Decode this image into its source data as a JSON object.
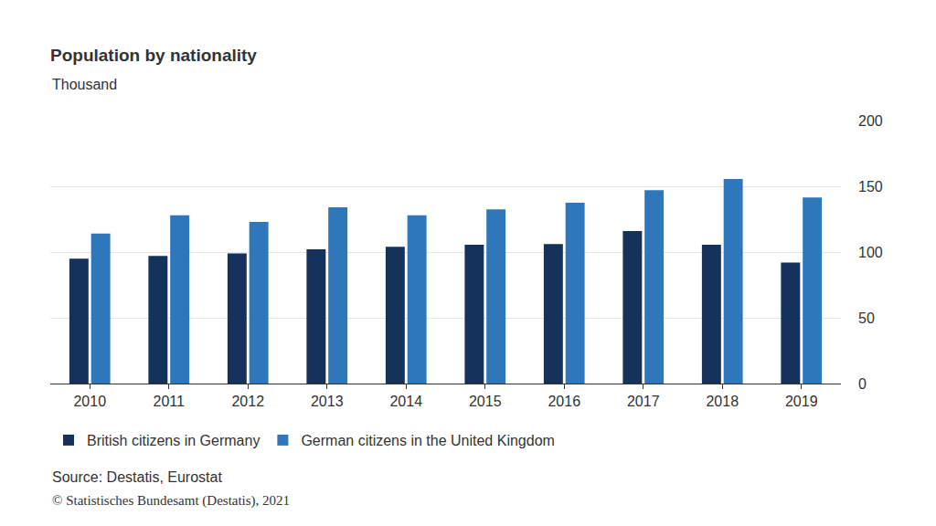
{
  "chart_data": {
    "type": "bar",
    "title": "Population by nationality",
    "subtitle": "Thousand",
    "categories": [
      "2010",
      "2011",
      "2012",
      "2013",
      "2014",
      "2015",
      "2016",
      "2017",
      "2018",
      "2019"
    ],
    "series": [
      {
        "name": "British citizens in Germany",
        "color": "#15325b",
        "values": [
          95,
          97,
          99,
          102,
          104,
          105.5,
          106,
          116,
          105.5,
          92
        ]
      },
      {
        "name": "German citizens in the United Kingdom",
        "color": "#2f77bb",
        "values": [
          114,
          128,
          123,
          134,
          128,
          132.5,
          137.5,
          147,
          155.5,
          141.5
        ]
      }
    ],
    "ylim": [
      0,
      200
    ],
    "yticks": [
      0,
      50,
      100,
      150,
      200
    ],
    "grid": true,
    "legend": "bottom",
    "annotations": [
      "Source: Destatis, Eurostat",
      "© Statistisches Bundesamt (Destatis), 2021"
    ]
  }
}
